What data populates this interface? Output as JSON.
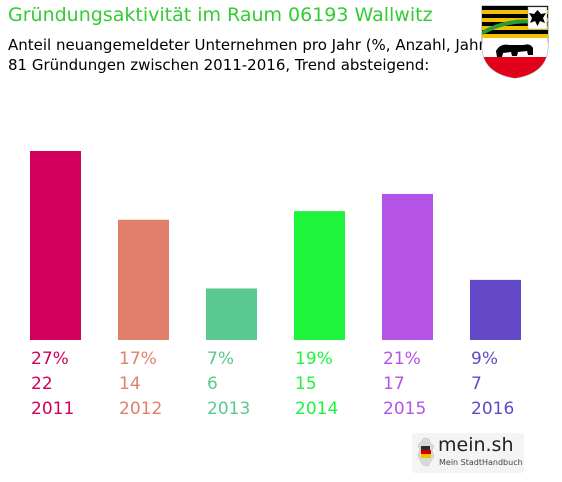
{
  "header": {
    "title": "Gründungsaktivität im Raum 06193 Wallwitz",
    "subtitle_line1": "Anteil neuangemeldeter Unternehmen pro Jahr (%, Anzahl, Jahr)",
    "subtitle_line2": "81 Gründungen zwischen 2011-2016, Trend absteigend:"
  },
  "logo": {
    "name": "mein.sh",
    "tagline": "Mein StadtHandbuch",
    "icon": "germany-map-icon"
  },
  "crest": {
    "icon": "saxony-anhalt-coat-of-arms-icon"
  },
  "chart_data": {
    "type": "bar",
    "categories": [
      "2011",
      "2012",
      "2013",
      "2014",
      "2015",
      "2016"
    ],
    "values": [
      22,
      14,
      6,
      15,
      17,
      7
    ],
    "percent_labels": [
      "27%",
      "17%",
      "7%",
      "19%",
      "21%",
      "9%"
    ],
    "colors": [
      "#d1005c",
      "#e0806c",
      "#5ac98f",
      "#1ef43c",
      "#b553e7",
      "#6349c8"
    ],
    "ylim": [
      0,
      22
    ]
  }
}
